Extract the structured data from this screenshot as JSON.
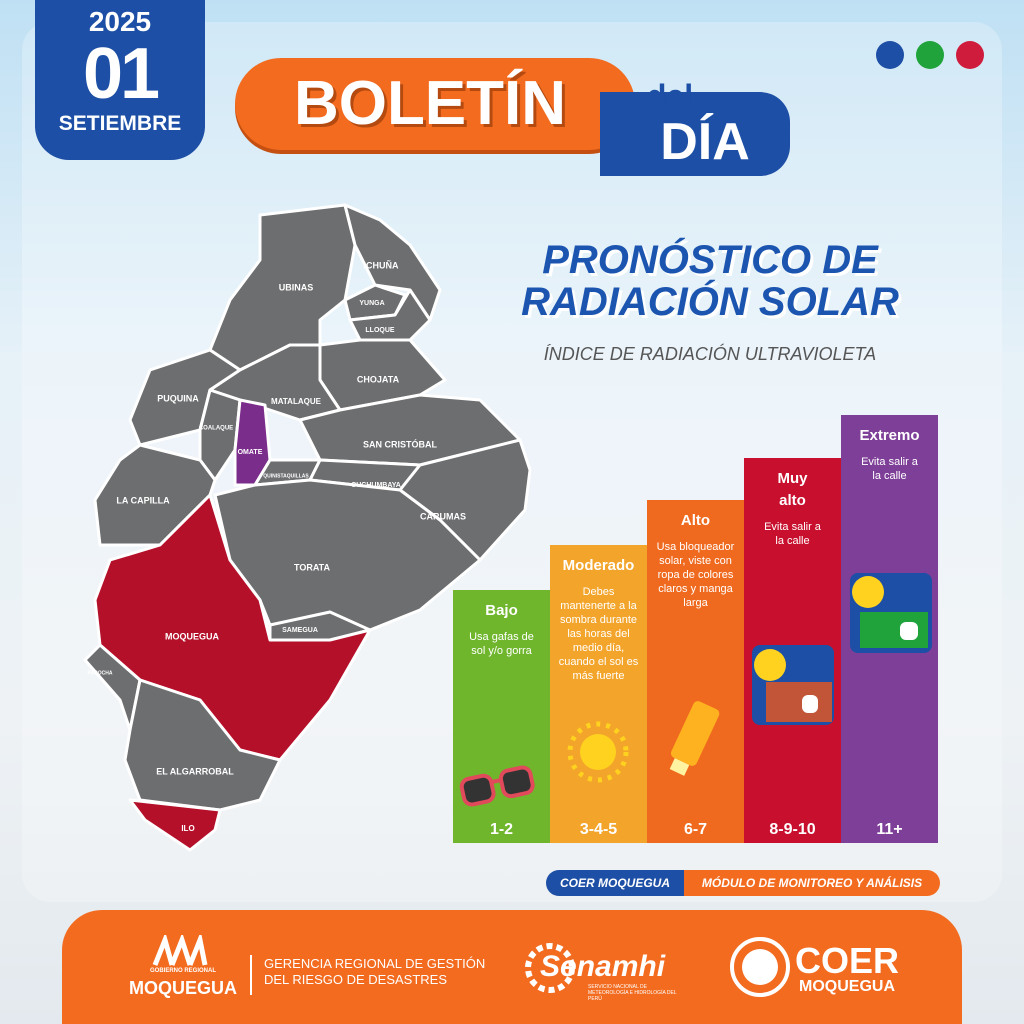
{
  "header": {
    "year": "2025",
    "day": "01",
    "month": "SETIEMBRE",
    "title": "BOLETÍN",
    "title_small": "del",
    "title_day": "DÍA"
  },
  "heading": {
    "line1": "PRONÓSTICO DE",
    "line2": "RADIACIÓN SOLAR",
    "subtitle": "ÍNDICE DE RADIACIÓN ULTRAVIOLETA"
  },
  "map": {
    "districts": [
      "UBINAS",
      "ICHUÑA",
      "YUNGA",
      "LLOQUE",
      "CHOJATA",
      "PUQUINA",
      "MATALAQUE",
      "COALAQUE",
      "OMATE",
      "SAN CRISTÓBAL",
      "QUINISTAQUILLAS",
      "CUCHUMBAYA",
      "CARUMAS",
      "LA CAPILLA",
      "TORATA",
      "SAMEGUA",
      "MOQUEGUA",
      "PACOCHA",
      "EL ALGARROBAL",
      "ILO"
    ]
  },
  "uv_levels": [
    {
      "name": "Bajo",
      "text": "Usa gafas de sol y/o gorra",
      "range": "1-2"
    },
    {
      "name": "Moderado",
      "text": "Debes mantenerte a la sombra durante las horas del medio día, cuando el sol es más fuerte",
      "range": "3-4-5"
    },
    {
      "name": "Alto",
      "text": "Usa bloqueador solar, viste con ropa de colores claros y manga larga",
      "range": "6-7"
    },
    {
      "name": "Muy alto",
      "text": "Evita salir a la calle",
      "range": "8-9-10"
    },
    {
      "name": "Extremo",
      "text": "Evita salir a la calle",
      "range": "11+"
    }
  ],
  "tags": [
    "COER MOQUEGUA",
    "MÓDULO DE MONITOREO Y ANÁLISIS"
  ],
  "footer": {
    "gob_small": "GOBIERNO REGIONAL",
    "gob": "MOQUEGUA",
    "gerencia1": "GERENCIA REGIONAL DE GESTIÓN",
    "gerencia2": "DEL RIESGO DE DESASTRES",
    "senamhi": "Senamhi",
    "senamhi_sub": "SERVICIO NACIONAL DE METEOROLOGÍA E HIDROLOGÍA DEL PERÚ",
    "coer": "COER",
    "coer_sub": "MOQUEGUA"
  }
}
